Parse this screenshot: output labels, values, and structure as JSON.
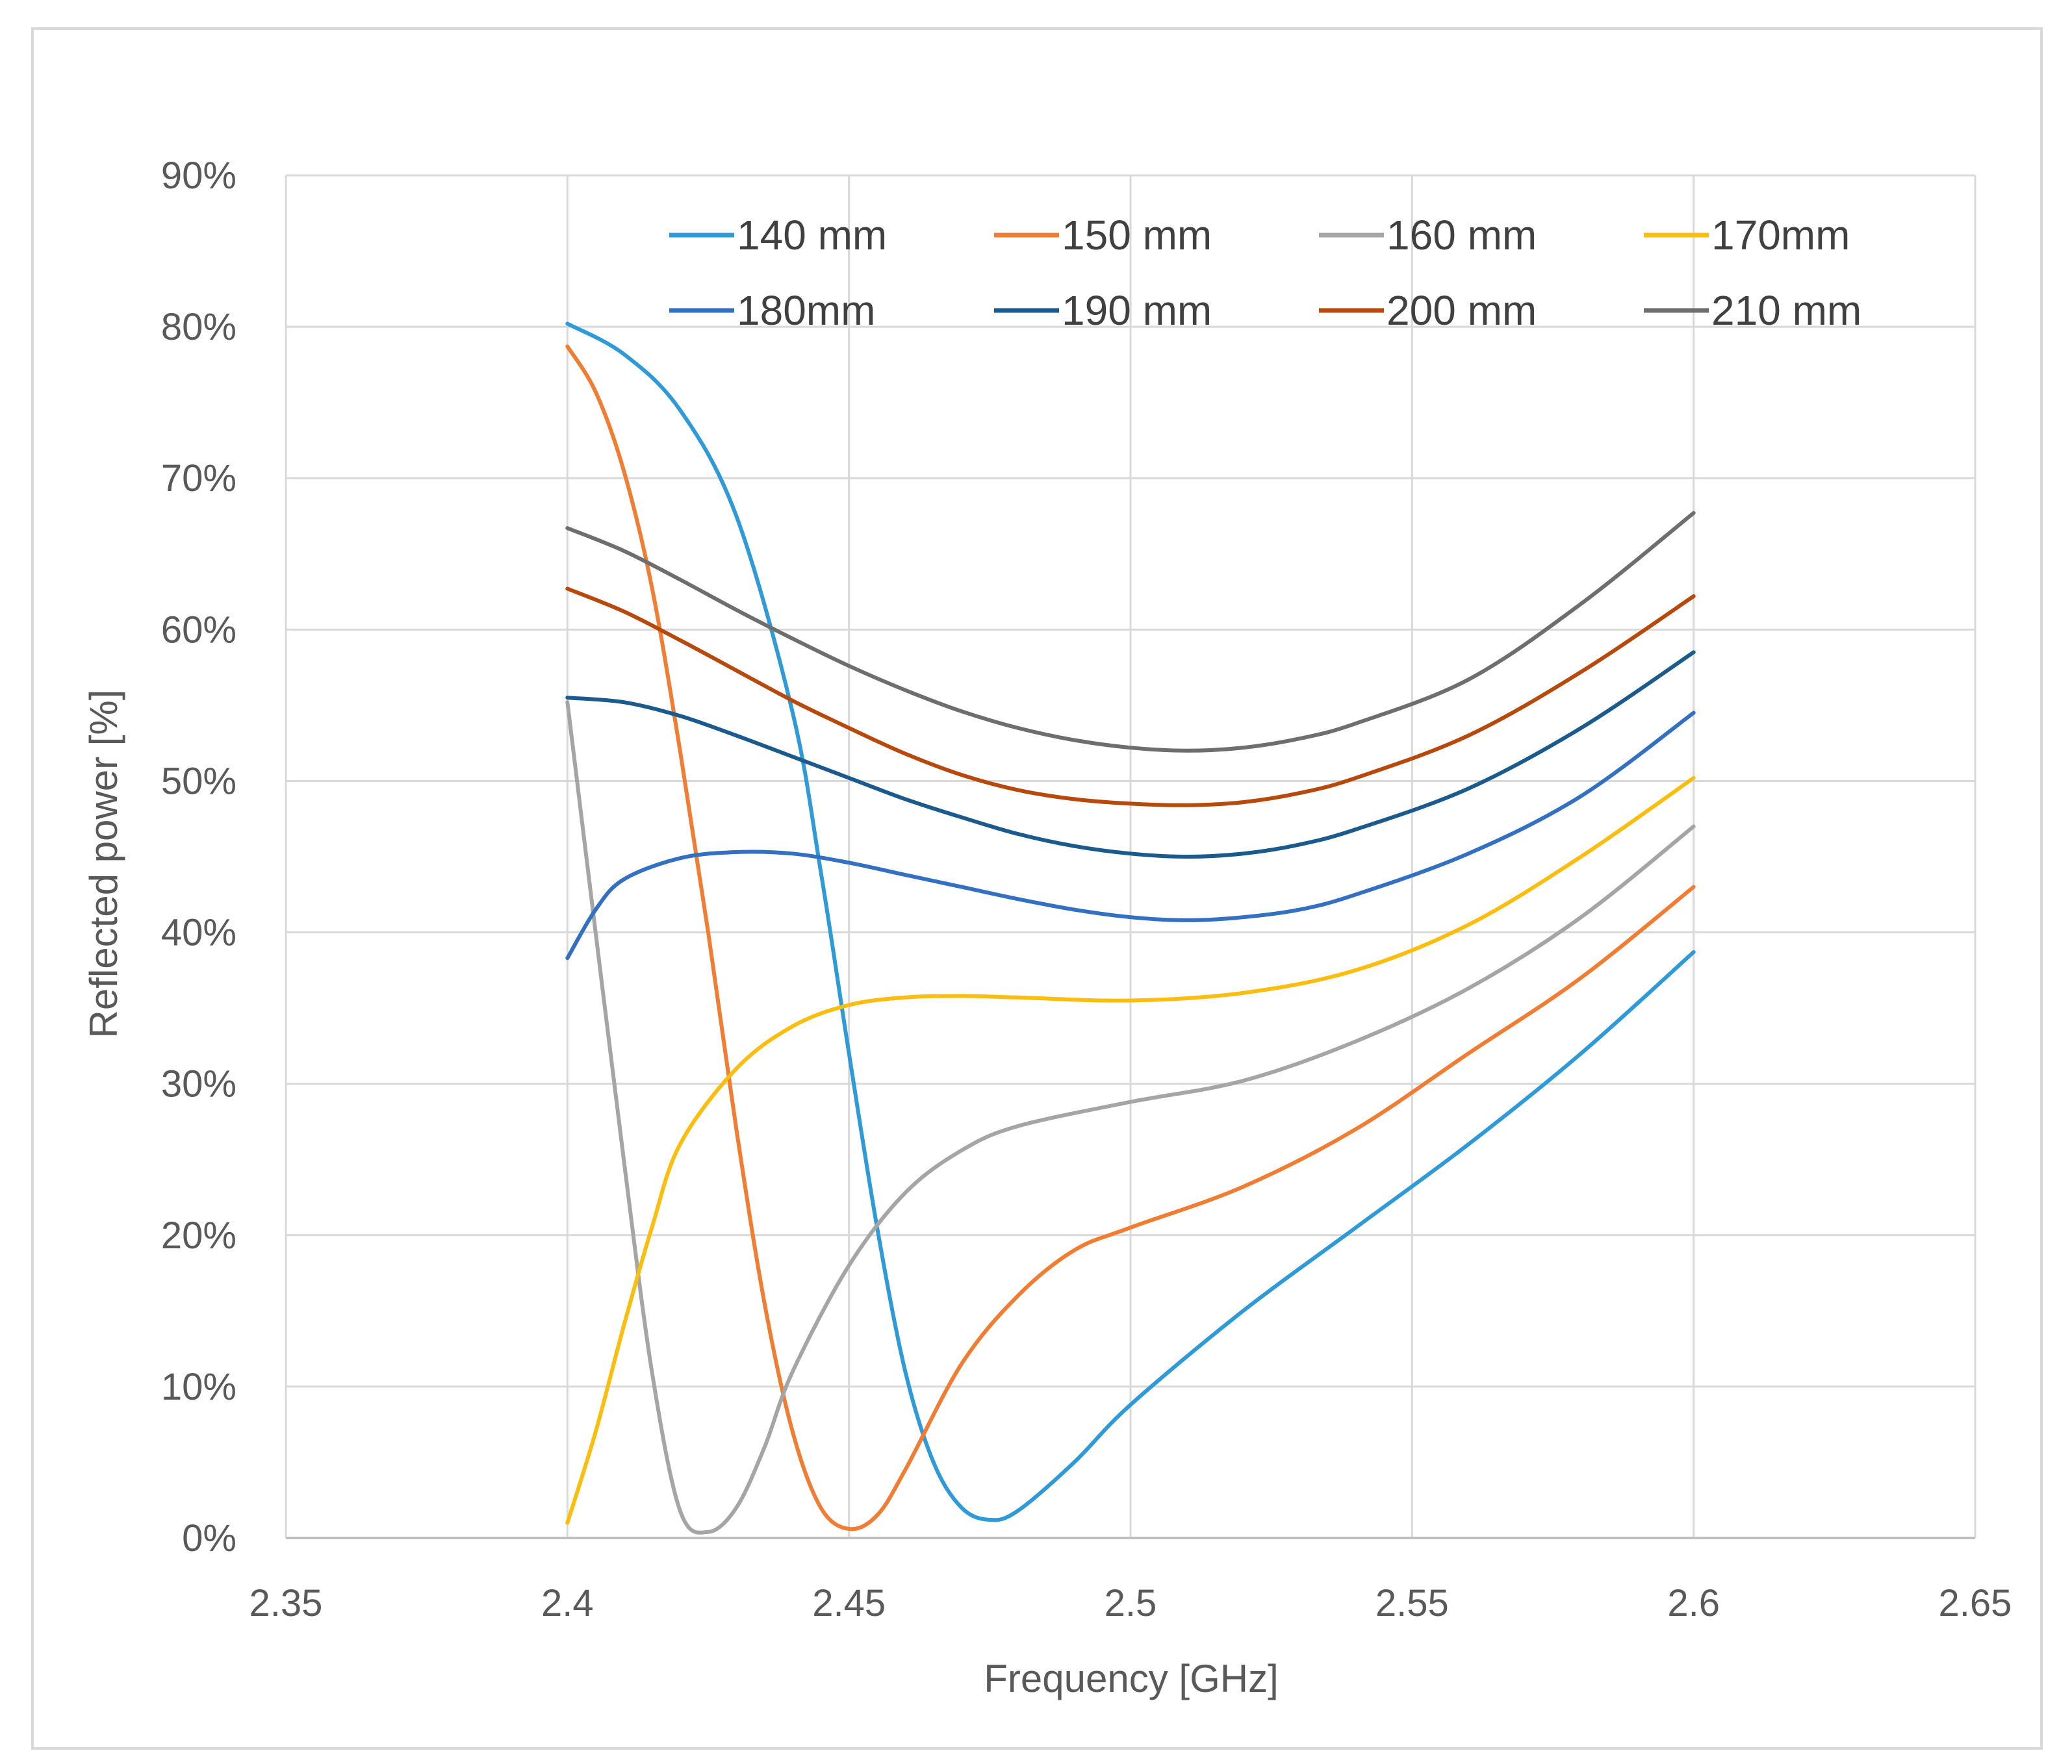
{
  "chart_data": {
    "type": "line",
    "title": "",
    "xlabel": "Frequency [GHz]",
    "ylabel": "Reflected  power [%]",
    "xlim": [
      2.35,
      2.65
    ],
    "ylim": [
      0,
      0.9
    ],
    "x_ticks": [
      2.35,
      2.4,
      2.45,
      2.5,
      2.55,
      2.6,
      2.65
    ],
    "x_tick_labels": [
      "2.35",
      "2.4",
      "2.45",
      "2.5",
      "2.55",
      "2.6",
      "2.65"
    ],
    "y_ticks": [
      0,
      0.1,
      0.2,
      0.3,
      0.4,
      0.5,
      0.6,
      0.7,
      0.8,
      0.9
    ],
    "y_tick_labels": [
      "0%",
      "10%",
      "20%",
      "30%",
      "40%",
      "50%",
      "60%",
      "70%",
      "80%",
      "90%"
    ],
    "grid": true,
    "legend_position": "top",
    "series": [
      {
        "name": "140 mm",
        "color": "#2e9ad8",
        "points": [
          [
            2.4,
            0.802
          ],
          [
            2.41,
            0.782
          ],
          [
            2.42,
            0.745
          ],
          [
            2.43,
            0.675
          ],
          [
            2.44,
            0.545
          ],
          [
            2.445,
            0.44
          ],
          [
            2.45,
            0.32
          ],
          [
            2.455,
            0.205
          ],
          [
            2.46,
            0.11
          ],
          [
            2.465,
            0.05
          ],
          [
            2.47,
            0.02
          ],
          [
            2.475,
            0.012
          ],
          [
            2.48,
            0.018
          ],
          [
            2.49,
            0.05
          ],
          [
            2.5,
            0.088
          ],
          [
            2.52,
            0.15
          ],
          [
            2.54,
            0.205
          ],
          [
            2.56,
            0.26
          ],
          [
            2.58,
            0.32
          ],
          [
            2.6,
            0.387
          ]
        ]
      },
      {
        "name": "150 mm",
        "color": "#f07d32",
        "points": [
          [
            2.4,
            0.787
          ],
          [
            2.405,
            0.757
          ],
          [
            2.41,
            0.705
          ],
          [
            2.415,
            0.628
          ],
          [
            2.42,
            0.52
          ],
          [
            2.425,
            0.4
          ],
          [
            2.43,
            0.27
          ],
          [
            2.435,
            0.155
          ],
          [
            2.44,
            0.07
          ],
          [
            2.445,
            0.02
          ],
          [
            2.45,
            0.006
          ],
          [
            2.455,
            0.015
          ],
          [
            2.46,
            0.045
          ],
          [
            2.47,
            0.115
          ],
          [
            2.48,
            0.16
          ],
          [
            2.49,
            0.19
          ],
          [
            2.5,
            0.205
          ],
          [
            2.52,
            0.232
          ],
          [
            2.54,
            0.27
          ],
          [
            2.56,
            0.32
          ],
          [
            2.58,
            0.37
          ],
          [
            2.6,
            0.43
          ]
        ]
      },
      {
        "name": "160 mm",
        "color": "#a5a5a5",
        "points": [
          [
            2.4,
            0.552
          ],
          [
            2.405,
            0.4
          ],
          [
            2.41,
            0.25
          ],
          [
            2.415,
            0.11
          ],
          [
            2.42,
            0.018
          ],
          [
            2.425,
            0.004
          ],
          [
            2.43,
            0.02
          ],
          [
            2.435,
            0.06
          ],
          [
            2.44,
            0.11
          ],
          [
            2.45,
            0.18
          ],
          [
            2.46,
            0.228
          ],
          [
            2.47,
            0.256
          ],
          [
            2.48,
            0.272
          ],
          [
            2.5,
            0.288
          ],
          [
            2.52,
            0.302
          ],
          [
            2.54,
            0.328
          ],
          [
            2.56,
            0.363
          ],
          [
            2.58,
            0.41
          ],
          [
            2.6,
            0.47
          ]
        ]
      },
      {
        "name": "170mm",
        "color": "#fbbe0e",
        "points": [
          [
            2.4,
            0.01
          ],
          [
            2.405,
            0.07
          ],
          [
            2.41,
            0.14
          ],
          [
            2.415,
            0.205
          ],
          [
            2.42,
            0.26
          ],
          [
            2.43,
            0.31
          ],
          [
            2.44,
            0.338
          ],
          [
            2.45,
            0.352
          ],
          [
            2.46,
            0.357
          ],
          [
            2.47,
            0.358
          ],
          [
            2.48,
            0.357
          ],
          [
            2.5,
            0.355
          ],
          [
            2.52,
            0.36
          ],
          [
            2.54,
            0.375
          ],
          [
            2.56,
            0.405
          ],
          [
            2.58,
            0.45
          ],
          [
            2.6,
            0.502
          ]
        ]
      },
      {
        "name": "180mm",
        "color": "#3370c2",
        "points": [
          [
            2.4,
            0.383
          ],
          [
            2.405,
            0.415
          ],
          [
            2.41,
            0.435
          ],
          [
            2.42,
            0.449
          ],
          [
            2.43,
            0.453
          ],
          [
            2.44,
            0.452
          ],
          [
            2.45,
            0.446
          ],
          [
            2.46,
            0.438
          ],
          [
            2.47,
            0.43
          ],
          [
            2.48,
            0.422
          ],
          [
            2.49,
            0.415
          ],
          [
            2.5,
            0.41
          ],
          [
            2.51,
            0.408
          ],
          [
            2.52,
            0.41
          ],
          [
            2.53,
            0.415
          ],
          [
            2.54,
            0.425
          ],
          [
            2.56,
            0.452
          ],
          [
            2.58,
            0.49
          ],
          [
            2.6,
            0.545
          ]
        ]
      },
      {
        "name": "190 mm",
        "color": "#1a5a8c",
        "points": [
          [
            2.4,
            0.555
          ],
          [
            2.41,
            0.552
          ],
          [
            2.42,
            0.543
          ],
          [
            2.43,
            0.53
          ],
          [
            2.44,
            0.516
          ],
          [
            2.45,
            0.502
          ],
          [
            2.46,
            0.488
          ],
          [
            2.47,
            0.476
          ],
          [
            2.48,
            0.465
          ],
          [
            2.49,
            0.457
          ],
          [
            2.5,
            0.452
          ],
          [
            2.51,
            0.45
          ],
          [
            2.52,
            0.452
          ],
          [
            2.53,
            0.458
          ],
          [
            2.54,
            0.468
          ],
          [
            2.56,
            0.495
          ],
          [
            2.58,
            0.535
          ],
          [
            2.6,
            0.585
          ]
        ]
      },
      {
        "name": "200 mm",
        "color": "#b8490c",
        "points": [
          [
            2.4,
            0.627
          ],
          [
            2.41,
            0.612
          ],
          [
            2.42,
            0.593
          ],
          [
            2.43,
            0.573
          ],
          [
            2.44,
            0.553
          ],
          [
            2.45,
            0.535
          ],
          [
            2.46,
            0.518
          ],
          [
            2.47,
            0.504
          ],
          [
            2.48,
            0.494
          ],
          [
            2.49,
            0.488
          ],
          [
            2.5,
            0.485
          ],
          [
            2.51,
            0.484
          ],
          [
            2.52,
            0.486
          ],
          [
            2.53,
            0.492
          ],
          [
            2.54,
            0.502
          ],
          [
            2.56,
            0.53
          ],
          [
            2.58,
            0.572
          ],
          [
            2.6,
            0.622
          ]
        ]
      },
      {
        "name": "210 mm",
        "color": "#6e6e6e",
        "points": [
          [
            2.4,
            0.667
          ],
          [
            2.41,
            0.652
          ],
          [
            2.42,
            0.633
          ],
          [
            2.43,
            0.613
          ],
          [
            2.44,
            0.594
          ],
          [
            2.45,
            0.576
          ],
          [
            2.46,
            0.56
          ],
          [
            2.47,
            0.546
          ],
          [
            2.48,
            0.535
          ],
          [
            2.49,
            0.527
          ],
          [
            2.5,
            0.522
          ],
          [
            2.51,
            0.52
          ],
          [
            2.52,
            0.522
          ],
          [
            2.53,
            0.528
          ],
          [
            2.54,
            0.538
          ],
          [
            2.56,
            0.567
          ],
          [
            2.58,
            0.617
          ],
          [
            2.6,
            0.677
          ]
        ]
      }
    ]
  }
}
